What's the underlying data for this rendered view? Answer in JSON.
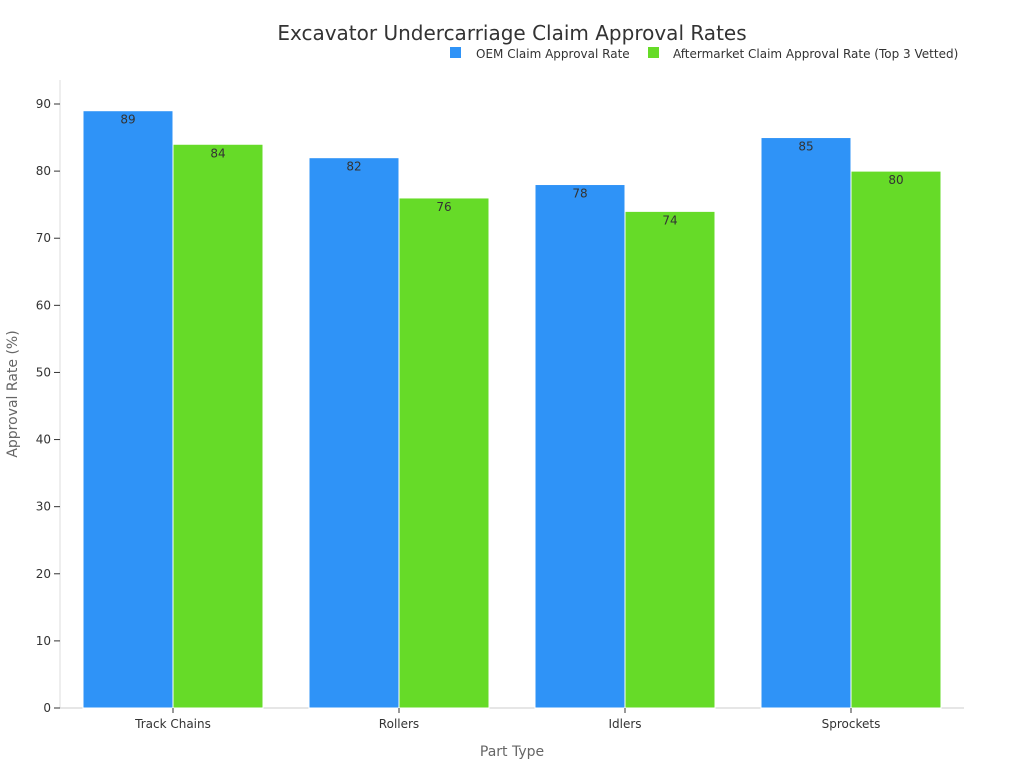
{
  "chart_data": {
    "type": "bar",
    "title": "Excavator Undercarriage Claim Approval Rates",
    "xlabel": "Part Type",
    "ylabel": "Approval Rate (%)",
    "categories": [
      "Track Chains",
      "Rollers",
      "Idlers",
      "Sprockets"
    ],
    "series": [
      {
        "name": "OEM Claim Approval Rate",
        "color": "#2f93f7",
        "values": [
          89,
          82,
          78,
          85
        ]
      },
      {
        "name": "Aftermarket Claim Approval Rate (Top 3 Vetted)",
        "color": "#66db28",
        "values": [
          84,
          76,
          74,
          80
        ]
      }
    ],
    "ylim": [
      0,
      90
    ],
    "yticks": [
      0,
      10,
      20,
      30,
      40,
      50,
      60,
      70,
      80,
      90
    ],
    "legend_position": "top-right",
    "grid": false,
    "data_labels": true
  }
}
